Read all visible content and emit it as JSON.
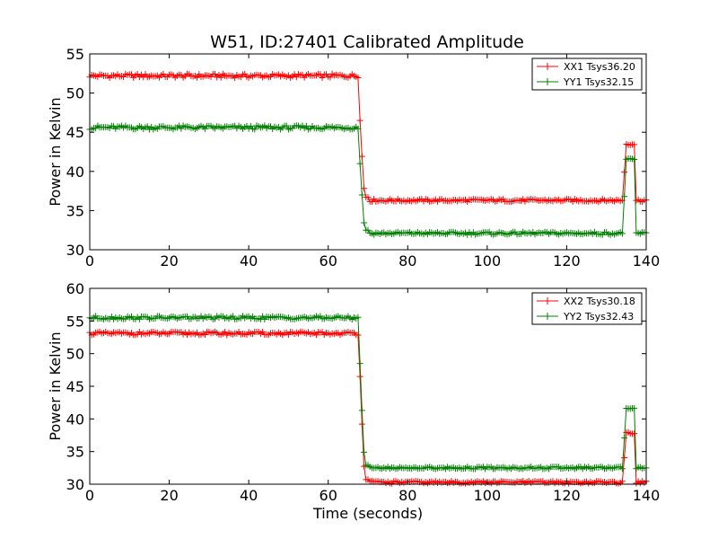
{
  "chart_data": [
    {
      "type": "line",
      "title": "W51, ID:27401 Calibrated Amplitude",
      "xlabel": "",
      "ylabel": "Power in Kelvin",
      "xlim": [
        0,
        140
      ],
      "ylim": [
        30,
        55
      ],
      "xticks": [
        0,
        20,
        40,
        60,
        80,
        100,
        120,
        140
      ],
      "yticks": [
        30,
        35,
        40,
        45,
        50,
        55
      ],
      "legend_position": "top-right",
      "marker": "+",
      "series": [
        {
          "name": "XX1 Tsys36.20",
          "color": "#ff0000",
          "levels": {
            "high": 52.2,
            "transition_mid": 46.5,
            "low": 36.3,
            "spike": 43.5
          }
        },
        {
          "name": "YY1 Tsys32.15",
          "color": "#008000",
          "levels": {
            "high": 45.6,
            "transition_mid": 41.0,
            "low": 32.1,
            "spike": 41.5
          }
        }
      ]
    },
    {
      "type": "line",
      "title": "",
      "xlabel": "Time (seconds)",
      "ylabel": "Power in Kelvin",
      "xlim": [
        0,
        140
      ],
      "ylim": [
        30,
        60
      ],
      "xticks": [
        0,
        20,
        40,
        60,
        80,
        100,
        120,
        140
      ],
      "yticks": [
        30,
        35,
        40,
        45,
        50,
        55,
        60
      ],
      "legend_position": "top-right",
      "marker": "+",
      "series": [
        {
          "name": "XX2 Tsys30.18",
          "color": "#ff0000",
          "levels": {
            "high": 53.1,
            "transition_mid": 46.5,
            "low": 30.3,
            "spike": 37.8
          }
        },
        {
          "name": "YY2 Tsys32.43",
          "color": "#008000",
          "levels": {
            "high": 55.5,
            "transition_mid": 48.5,
            "low": 32.5,
            "spike": 41.7
          }
        }
      ]
    }
  ]
}
